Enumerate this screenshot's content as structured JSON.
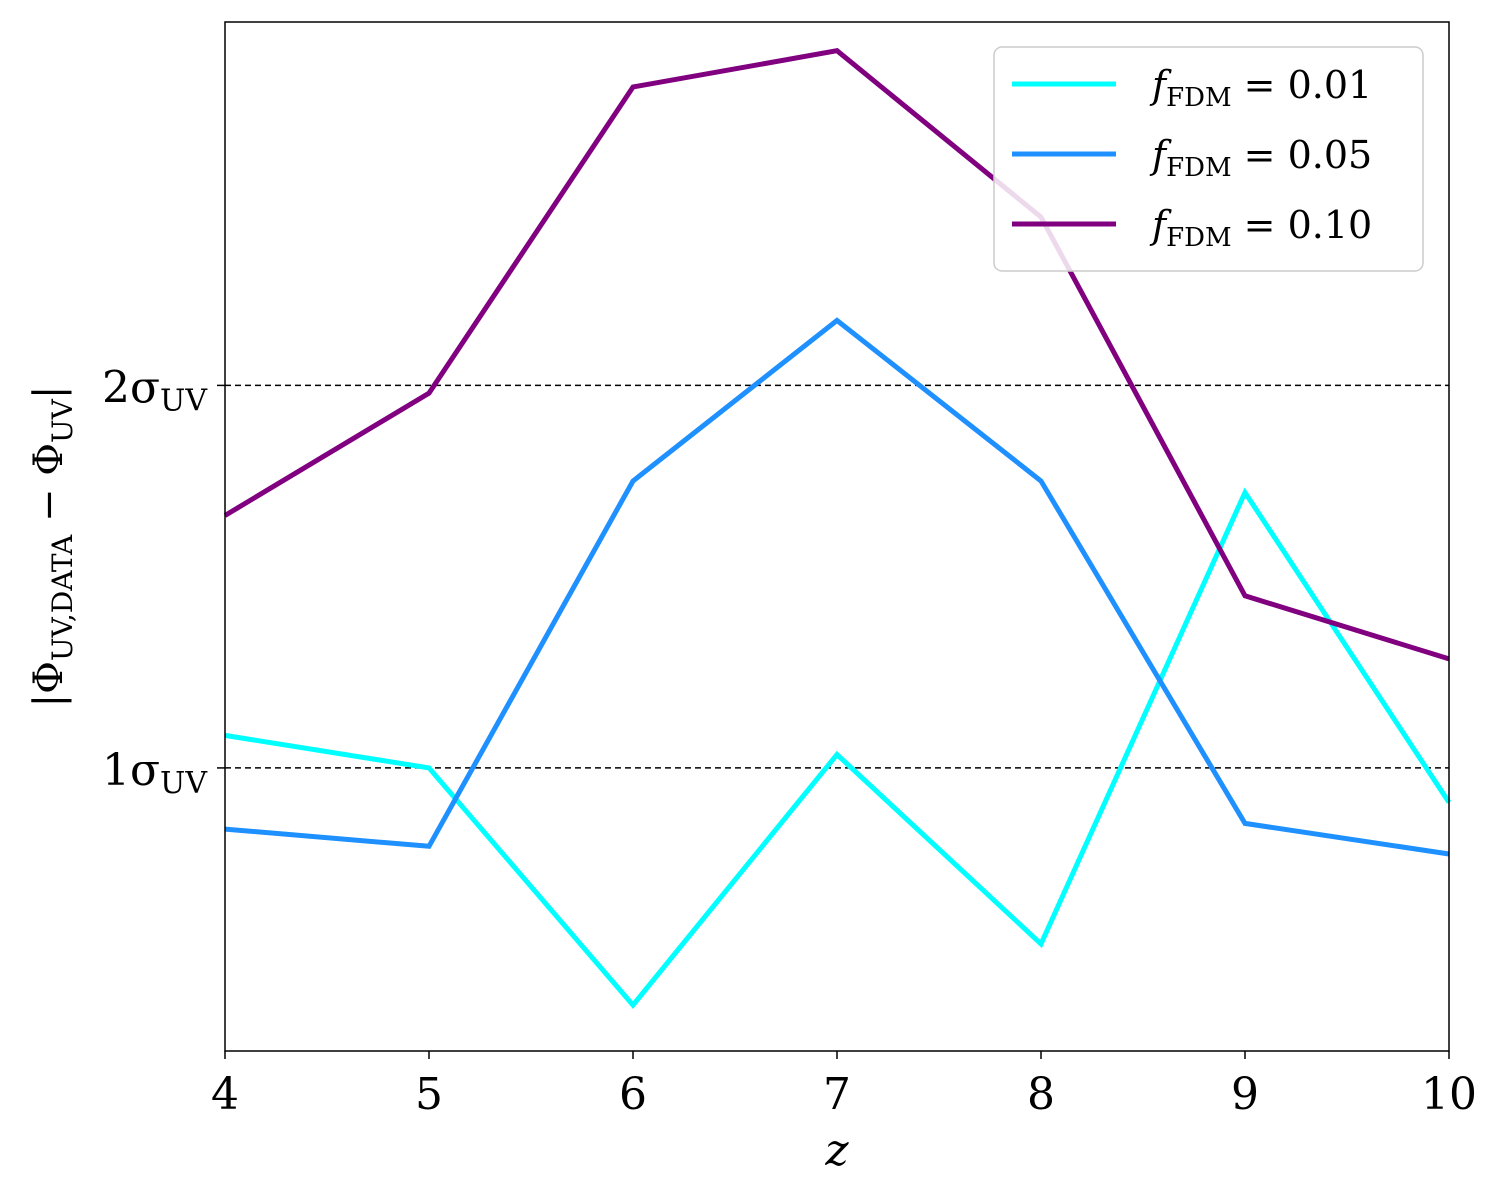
{
  "chart_data": {
    "type": "line",
    "xlabel": "z",
    "ylabel": "|Φ_UV,DATA − Φ_UV|",
    "x": [
      4,
      5,
      6,
      7,
      8,
      9,
      10
    ],
    "xlim": [
      4,
      10
    ],
    "xticks": [
      "4",
      "5",
      "6",
      "7",
      "8",
      "9",
      "10"
    ],
    "ylim": [
      0.26,
      2.95
    ],
    "yticks": [
      {
        "value": 1,
        "label": "1σ_UV",
        "main": "1σ",
        "sub": "UV"
      },
      {
        "value": 2,
        "label": "2σ_UV",
        "main": "2σ",
        "sub": "UV"
      }
    ],
    "reference_lines": [
      1,
      2
    ],
    "grid": false,
    "legend_position": "top-right",
    "series": [
      {
        "name": "f_FDM = 0.01",
        "legend_main": "f",
        "legend_sub": "FDM",
        "legend_rest": " = 0.01",
        "color": "#00ffff",
        "values": [
          1.085,
          1.0,
          0.38,
          1.035,
          0.54,
          1.72,
          0.91
        ]
      },
      {
        "name": "f_FDM = 0.05",
        "legend_main": "f",
        "legend_sub": "FDM",
        "legend_rest": " = 0.05",
        "color": "#1e90ff",
        "values": [
          0.84,
          0.795,
          1.75,
          2.17,
          1.75,
          0.855,
          0.775
        ]
      },
      {
        "name": "f_FDM = 0.10",
        "legend_main": "f",
        "legend_sub": "FDM",
        "legend_rest": " = 0.10",
        "color": "#800080",
        "values": [
          1.66,
          1.98,
          2.78,
          2.875,
          2.44,
          1.45,
          1.285
        ]
      }
    ]
  }
}
